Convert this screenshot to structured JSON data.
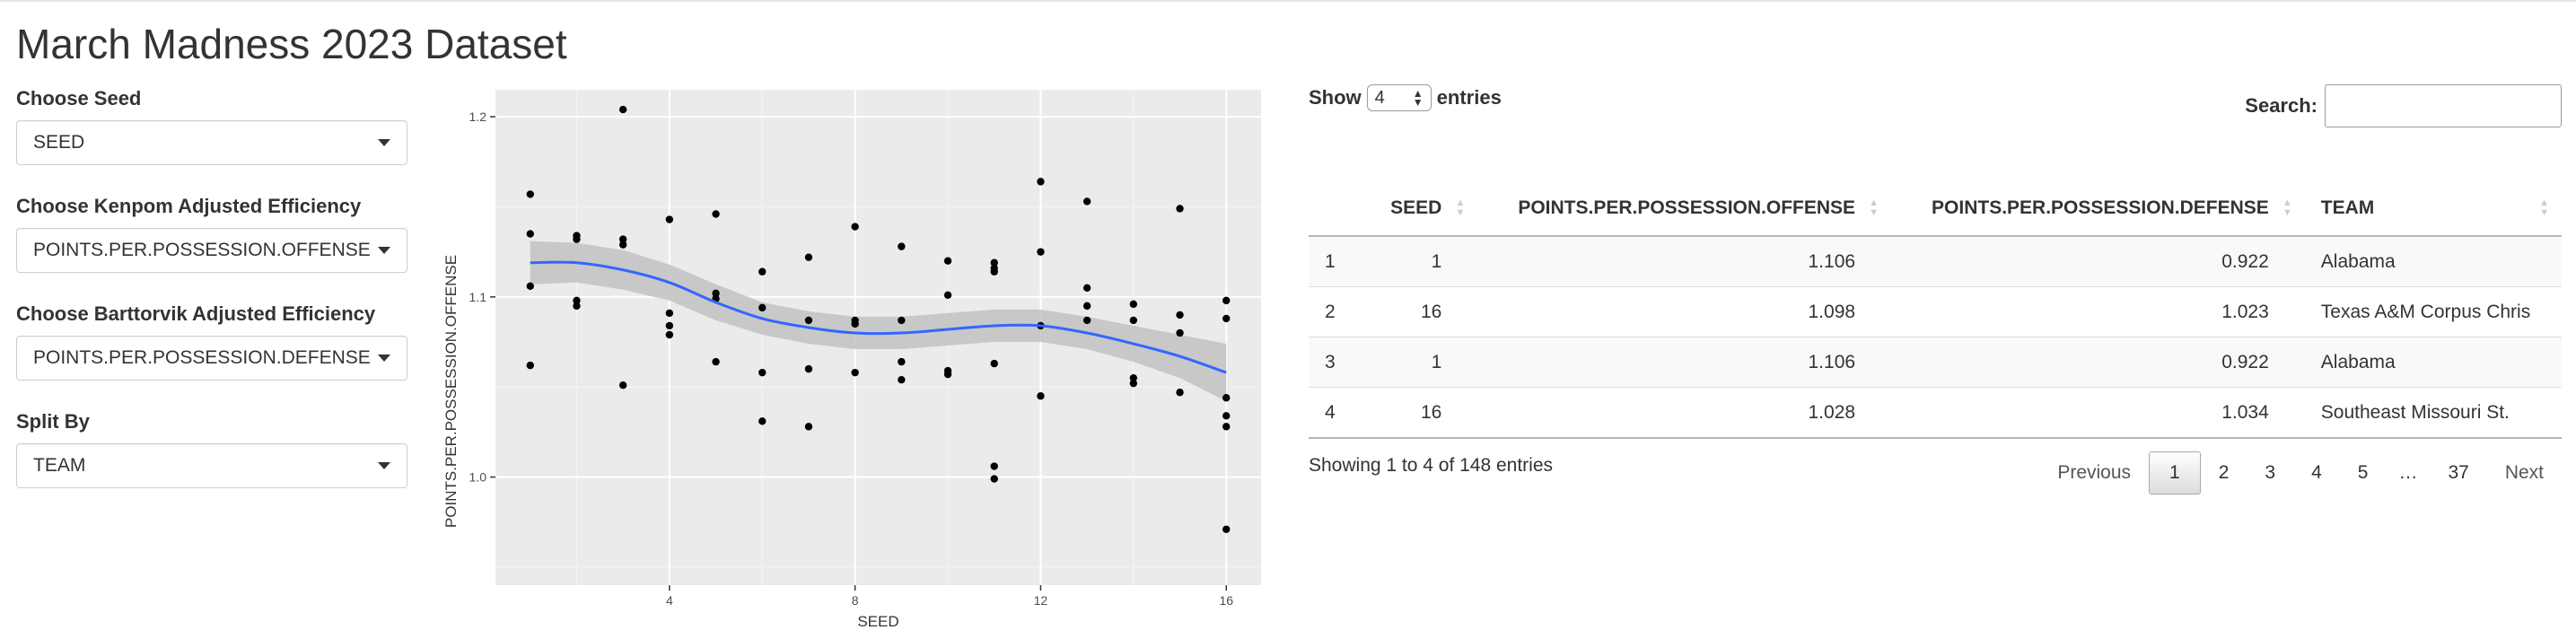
{
  "page": {
    "title": "March Madness 2023 Dataset"
  },
  "sidebar": {
    "controls": [
      {
        "label": "Choose Seed",
        "value": "SEED"
      },
      {
        "label": "Choose Kenpom Adjusted Efficiency",
        "value": "POINTS.PER.POSSESSION.OFFENSE"
      },
      {
        "label": "Choose Barttorvik Adjusted Efficiency",
        "value": "POINTS.PER.POSSESSION.DEFENSE"
      },
      {
        "label": "Split By",
        "value": "TEAM"
      }
    ]
  },
  "chart_data": {
    "type": "scatter",
    "xlabel": "SEED",
    "ylabel": "POINTS.PER.POSSESSION.OFFENSE",
    "xlim": [
      0.25,
      16.75
    ],
    "ylim": [
      0.94,
      1.215
    ],
    "x_ticks": [
      4,
      8,
      12,
      16
    ],
    "y_ticks": [
      1.0,
      1.1,
      1.2
    ],
    "x_tick_labels": [
      "4",
      "8",
      "12",
      "16"
    ],
    "y_tick_labels": [
      "1.0",
      "1.1",
      "1.2"
    ],
    "grid": true,
    "points": [
      [
        1,
        1.157
      ],
      [
        1,
        1.135
      ],
      [
        1,
        1.106
      ],
      [
        1,
        1.062
      ],
      [
        2,
        1.134
      ],
      [
        2,
        1.132
      ],
      [
        2,
        1.098
      ],
      [
        2,
        1.095
      ],
      [
        3,
        1.204
      ],
      [
        3,
        1.132
      ],
      [
        3,
        1.129
      ],
      [
        3,
        1.051
      ],
      [
        4,
        1.143
      ],
      [
        4,
        1.091
      ],
      [
        4,
        1.084
      ],
      [
        4,
        1.079
      ],
      [
        5,
        1.146
      ],
      [
        5,
        1.102
      ],
      [
        5,
        1.099
      ],
      [
        5,
        1.064
      ],
      [
        6,
        1.114
      ],
      [
        6,
        1.094
      ],
      [
        6,
        1.058
      ],
      [
        6,
        1.031
      ],
      [
        7,
        1.122
      ],
      [
        7,
        1.087
      ],
      [
        7,
        1.06
      ],
      [
        7,
        1.028
      ],
      [
        8,
        1.139
      ],
      [
        8,
        1.087
      ],
      [
        8,
        1.085
      ],
      [
        8,
        1.058
      ],
      [
        9,
        1.128
      ],
      [
        9,
        1.087
      ],
      [
        9,
        1.064
      ],
      [
        9,
        1.054
      ],
      [
        10,
        1.12
      ],
      [
        10,
        1.101
      ],
      [
        10,
        1.059
      ],
      [
        10,
        1.057
      ],
      [
        11,
        1.119
      ],
      [
        11,
        1.116
      ],
      [
        11,
        1.114
      ],
      [
        11,
        1.063
      ],
      [
        11,
        1.006
      ],
      [
        11,
        0.999
      ],
      [
        12,
        1.164
      ],
      [
        12,
        1.125
      ],
      [
        12,
        1.084
      ],
      [
        12,
        1.045
      ],
      [
        13,
        1.153
      ],
      [
        13,
        1.105
      ],
      [
        13,
        1.095
      ],
      [
        13,
        1.087
      ],
      [
        14,
        1.096
      ],
      [
        14,
        1.087
      ],
      [
        14,
        1.055
      ],
      [
        14,
        1.052
      ],
      [
        15,
        1.149
      ],
      [
        15,
        1.09
      ],
      [
        15,
        1.08
      ],
      [
        15,
        1.047
      ],
      [
        16,
        1.098
      ],
      [
        16,
        1.088
      ],
      [
        16,
        1.044
      ],
      [
        16,
        1.034
      ],
      [
        16,
        1.028
      ],
      [
        16,
        0.971
      ]
    ],
    "smooth": {
      "x": [
        1,
        2,
        3,
        4,
        5,
        6,
        7,
        8,
        9,
        10,
        11,
        12,
        13,
        14,
        15,
        16
      ],
      "y": [
        1.119,
        1.119,
        1.115,
        1.108,
        1.097,
        1.088,
        1.083,
        1.08,
        1.08,
        1.082,
        1.084,
        1.084,
        1.08,
        1.074,
        1.067,
        1.058
      ],
      "se": [
        0.012,
        0.011,
        0.011,
        0.01,
        0.01,
        0.009,
        0.009,
        0.009,
        0.009,
        0.009,
        0.009,
        0.009,
        0.009,
        0.01,
        0.012,
        0.016
      ],
      "line_color": "#3366ff",
      "band_color": "#c2c2c2"
    },
    "panel_background": "#ebebeb"
  },
  "table": {
    "length_label_pre": "Show",
    "length_value": "4",
    "length_label_post": "entries",
    "search_label": "Search:",
    "columns": [
      "",
      "SEED",
      "POINTS.PER.POSSESSION.OFFENSE",
      "POINTS.PER.POSSESSION.DEFENSE",
      "TEAM"
    ],
    "rows": [
      [
        "1",
        "1",
        "1.106",
        "0.922",
        "Alabama"
      ],
      [
        "2",
        "16",
        "1.098",
        "1.023",
        "Texas A&M Corpus Chris"
      ],
      [
        "3",
        "1",
        "1.106",
        "0.922",
        "Alabama"
      ],
      [
        "4",
        "16",
        "1.028",
        "1.034",
        "Southeast Missouri St."
      ]
    ],
    "info": "Showing 1 to 4 of 148 entries",
    "pagination": {
      "previous": "Previous",
      "pages": [
        "1",
        "2",
        "3",
        "4",
        "5",
        "…",
        "37"
      ],
      "current": "1",
      "next": "Next"
    }
  }
}
